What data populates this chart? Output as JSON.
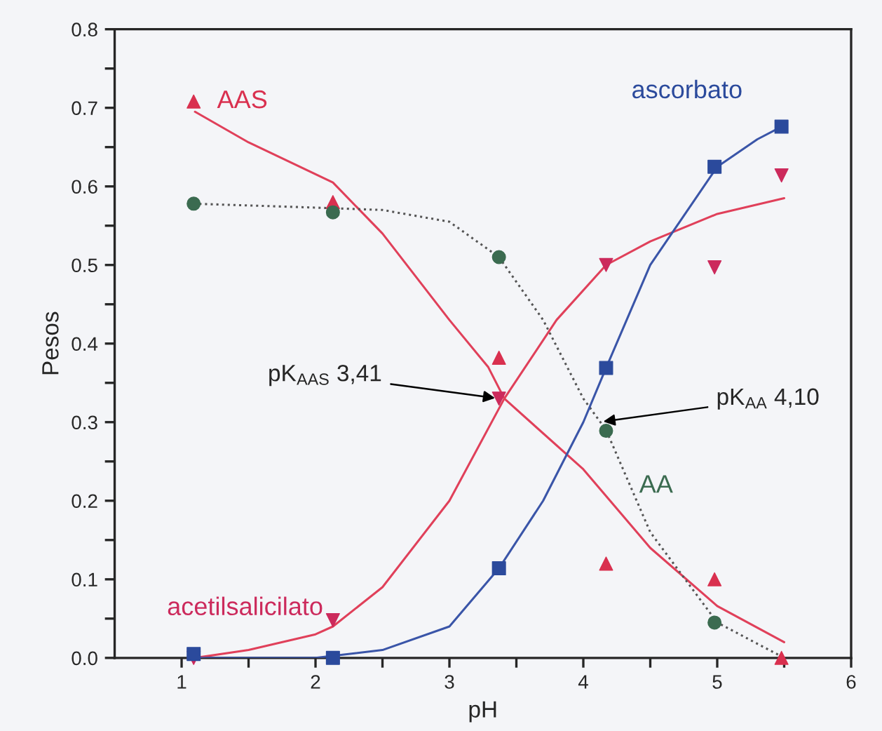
{
  "chart_data": {
    "type": "scatter",
    "xlabel": "pH",
    "ylabel": "Pesos",
    "x": [
      1.09,
      2.13,
      3.37,
      4.17,
      4.98,
      5.48
    ],
    "series": [
      {
        "name": "AAS",
        "marker": "triangle",
        "color": "#d9304f",
        "values": [
          0.708,
          0.58,
          0.382,
          0.12,
          0.1,
          0.0
        ]
      },
      {
        "name": "acetilsalicilato",
        "marker": "triangle_down",
        "color": "#cc2a5c",
        "values": [
          0.0,
          0.048,
          0.33,
          0.5,
          0.497,
          0.614
        ]
      },
      {
        "name": "AA",
        "marker": "circle",
        "color": "#3b6b50",
        "values": [
          0.578,
          0.567,
          0.51,
          0.289,
          0.045,
          null
        ]
      },
      {
        "name": "ascorbato",
        "marker": "square",
        "color": "#2b4a9c",
        "values": [
          0.005,
          0.0,
          0.114,
          0.369,
          0.625,
          0.676
        ]
      },
      {
        "type": "line",
        "line_style": "solid",
        "color": "#e0405a",
        "x": [
          1.1,
          1.5,
          2.13,
          2.5,
          3.0,
          3.29,
          3.41,
          4.0,
          4.5,
          5.0,
          5.5
        ],
        "values": [
          0.695,
          0.656,
          0.605,
          0.54,
          0.43,
          0.37,
          0.33,
          0.24,
          0.14,
          0.066,
          0.02
        ]
      },
      {
        "type": "line",
        "line_style": "solid",
        "color": "#e0405a",
        "x": [
          1.1,
          1.5,
          2.0,
          2.13,
          2.5,
          3.0,
          3.41,
          3.8,
          4.17,
          4.5,
          5.0,
          5.5
        ],
        "values": [
          0.0,
          0.01,
          0.03,
          0.04,
          0.09,
          0.2,
          0.33,
          0.43,
          0.5,
          0.53,
          0.565,
          0.585
        ]
      },
      {
        "type": "line",
        "line_style": "dotted",
        "color": "#555555",
        "x": [
          1.09,
          2.0,
          2.5,
          3.0,
          3.37,
          3.7,
          4.0,
          4.17,
          4.5,
          5.0,
          5.5
        ],
        "values": [
          0.578,
          0.573,
          0.57,
          0.555,
          0.51,
          0.43,
          0.33,
          0.29,
          0.16,
          0.045,
          0.0
        ]
      },
      {
        "type": "line",
        "line_style": "solid",
        "color": "#3a55a8",
        "x": [
          1.1,
          2.0,
          2.5,
          3.0,
          3.37,
          3.7,
          4.0,
          4.17,
          4.5,
          5.0,
          5.3,
          5.48
        ],
        "values": [
          0.0,
          0.0,
          0.01,
          0.04,
          0.114,
          0.2,
          0.3,
          0.369,
          0.5,
          0.625,
          0.66,
          0.676
        ]
      }
    ],
    "annotations": [
      {
        "text": "pK$_{AAS}$ 3,41",
        "x": 3.37,
        "y": 0.33
      },
      {
        "text": "pK$_{AA}$ 4,10",
        "x": 4.12,
        "y": 0.3
      }
    ],
    "xlim": [
      0.5,
      6
    ],
    "xticks": [
      1,
      {
        "value": 1.5,
        "label": null
      },
      2,
      {
        "value": 2.5,
        "label": null
      },
      3,
      {
        "value": 3.5,
        "label": null
      },
      4,
      {
        "value": 4.5,
        "label": null
      },
      5,
      {
        "value": 5.5,
        "label": null
      },
      6
    ],
    "ylim": [
      0,
      0.8
    ],
    "yticks": [
      {
        "value": 0,
        "label": "0.0"
      },
      {
        "value": 0.05,
        "label": null
      },
      {
        "value": 0.1,
        "label": "0.1"
      },
      {
        "value": 0.15,
        "label": null
      },
      {
        "value": 0.2,
        "label": "0.2"
      },
      {
        "value": 0.25,
        "label": null
      },
      {
        "value": 0.3,
        "label": "0.3"
      },
      {
        "value": 0.35,
        "label": null
      },
      {
        "value": 0.4,
        "label": "0.4"
      },
      {
        "value": 0.45,
        "label": null
      },
      {
        "value": 0.5,
        "label": "0.5"
      },
      {
        "value": 0.55,
        "label": null
      },
      {
        "value": 0.6,
        "label": "0.6"
      },
      {
        "value": 0.65,
        "label": null
      },
      {
        "value": 0.7,
        "label": "0.7"
      },
      {
        "value": 0.75,
        "label": null
      },
      {
        "value": 0.8,
        "label": "0.8"
      }
    ],
    "grid": false,
    "legend": false
  }
}
